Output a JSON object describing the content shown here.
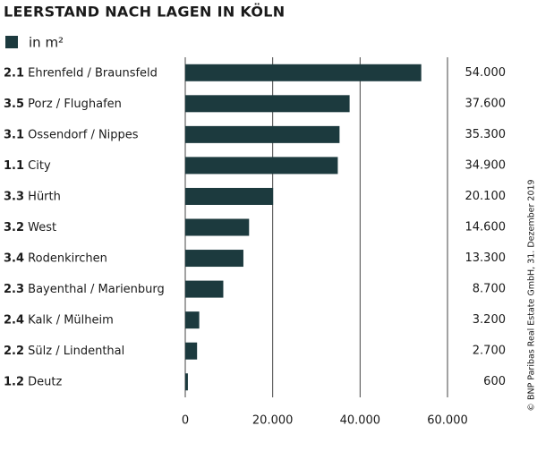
{
  "chart_data": {
    "type": "bar",
    "orientation": "horizontal",
    "title": "LEERSTAND NACH LAGEN IN KÖLN",
    "codes": [
      "2.1",
      "3.5",
      "3.1",
      "1.1",
      "3.3",
      "3.2",
      "3.4",
      "2.3",
      "2.4",
      "2.2",
      "1.2"
    ],
    "categories": [
      "Ehrenfeld / Braunsfeld",
      "Porz / Flughafen",
      "Ossendorf / Nippes",
      "City",
      "Hürth",
      "West",
      "Rodenkirchen",
      "Bayenthal / Marienburg",
      "Kalk / Mülheim",
      "Sülz / Lindenthal",
      "Deutz"
    ],
    "series": [
      {
        "name": "in m²",
        "color": "#1c3a3e",
        "values": [
          54000,
          37600,
          35300,
          34900,
          20100,
          14600,
          13300,
          8700,
          3200,
          2700,
          600
        ],
        "value_labels": [
          "54.000",
          "37.600",
          "35.300",
          "34.900",
          "20.100",
          "14.600",
          "13.300",
          "8.700",
          "3.200",
          "2.700",
          "600"
        ]
      }
    ],
    "xlim": [
      0,
      60000
    ],
    "xticks": [
      0,
      {
        "value": 20000,
        "label": "20.000"
      },
      {
        "value": 40000,
        "label": "40.000"
      },
      {
        "value": 60000,
        "label": "60.000"
      }
    ],
    "grid": true,
    "source": "© BNP Paribas Real Estate GmbH, 31. Dezember 2019"
  }
}
